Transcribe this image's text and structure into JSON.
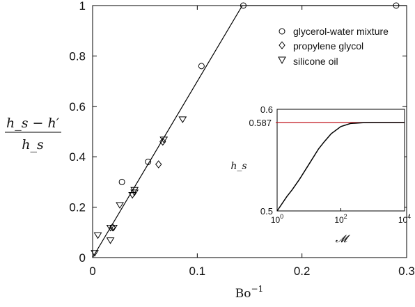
{
  "chart_data": [
    {
      "type": "scatter",
      "xlabel_base": "Bo",
      "xlabel_exp": "−1",
      "ylabel_num": "h_s − h′",
      "ylabel_den": "h_s",
      "xlim": [
        0,
        0.3
      ],
      "ylim": [
        0,
        1
      ],
      "x_ticks": [
        0,
        0.1,
        0.2,
        0.3
      ],
      "x_tick_labels": [
        "0",
        "0.1",
        "0.2",
        "0.3"
      ],
      "y_ticks": [
        0,
        0.2,
        0.4,
        0.6,
        0.8,
        1
      ],
      "y_tick_labels": [
        "0",
        "0.2",
        "0.4",
        "0.6",
        "0.8",
        "1"
      ],
      "grid": false,
      "legend_position": "top-right",
      "fit_line": [
        [
          0,
          0
        ],
        [
          0.143,
          1
        ],
        [
          0.3,
          1
        ]
      ],
      "series": [
        {
          "name": "glycerol-water mixture",
          "marker": "circle",
          "points": [
            [
              0.028,
              0.3
            ],
            [
              0.053,
              0.38
            ],
            [
              0.104,
              0.76
            ],
            [
              0.144,
              1.0
            ],
            [
              0.29,
              1.0
            ]
          ]
        },
        {
          "name": "propylene glycol",
          "marker": "diamond",
          "points": [
            [
              0.019,
              0.12
            ],
            [
              0.063,
              0.37
            ],
            [
              0.067,
              0.46
            ]
          ]
        },
        {
          "name": "silicone oil",
          "marker": "triangle-down",
          "points": [
            [
              0.002,
              0.02
            ],
            [
              0.005,
              0.09
            ],
            [
              0.017,
              0.07
            ],
            [
              0.017,
              0.12
            ],
            [
              0.02,
              0.12
            ],
            [
              0.026,
              0.21
            ],
            [
              0.038,
              0.25
            ],
            [
              0.04,
              0.26
            ],
            [
              0.04,
              0.27
            ],
            [
              0.068,
              0.47
            ],
            [
              0.086,
              0.55
            ]
          ]
        }
      ]
    },
    {
      "type": "line",
      "position": "inset right",
      "ylabel": "h_s",
      "xlabel": "𝓜",
      "x_scale": "log",
      "xlim": [
        1,
        10000
      ],
      "ylim": [
        0.5,
        0.6
      ],
      "x_ticks": [
        1,
        100,
        10000
      ],
      "x_tick_labels": [
        {
          "base": "10",
          "exp": "0"
        },
        {
          "base": "10",
          "exp": "2"
        },
        {
          "base": "10",
          "exp": "4"
        }
      ],
      "y_ticks": [
        0.5,
        0.6
      ],
      "y_tick_labels": [
        "0.5",
        "0.6"
      ],
      "asymptote": {
        "value": 0.587,
        "label": "0.587",
        "color": "#c0141c"
      },
      "curve": {
        "x": [
          1,
          2,
          3,
          5,
          10,
          20,
          30,
          50,
          100,
          200,
          500,
          1000,
          3000,
          10000
        ],
        "y": [
          0.5,
          0.514,
          0.521,
          0.531,
          0.546,
          0.561,
          0.568,
          0.576,
          0.583,
          0.586,
          0.5868,
          0.587,
          0.587,
          0.587
        ]
      },
      "colors": {
        "curve": "#000000",
        "asymptote": "#c0141c"
      }
    }
  ]
}
